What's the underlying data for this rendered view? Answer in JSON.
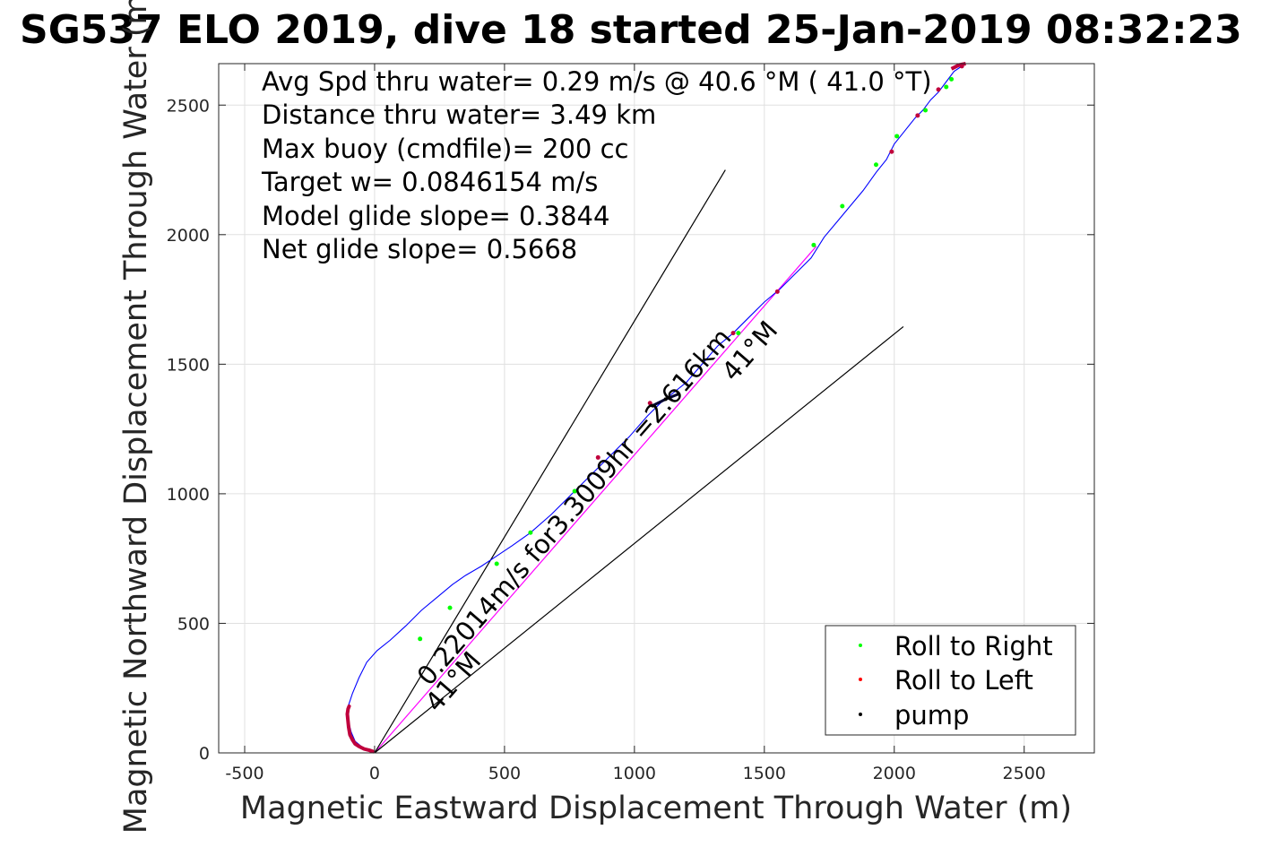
{
  "chart_data": {
    "type": "line",
    "title": "SG537 ELO 2019, dive 18 started 25-Jan-2019 08:32:23",
    "xlabel": "Magnetic Eastward Displacement Through Water (m)",
    "ylabel": "Magnetic Northward Displacement Through Water (m)",
    "xlim": [
      -600,
      2770
    ],
    "ylim": [
      0,
      2660
    ],
    "xticks": [
      -500,
      0,
      500,
      1000,
      1500,
      2000,
      2500
    ],
    "yticks": [
      0,
      500,
      1000,
      1500,
      2000,
      2500
    ],
    "xtick_labels": [
      "-500",
      "0",
      "500",
      "1000",
      "1500",
      "2000",
      "2500"
    ],
    "ytick_labels": [
      "0",
      "500",
      "1000",
      "1500",
      "2000",
      "2500"
    ],
    "grid": true,
    "legend_position": "bottom-right",
    "annotations": [
      "Avg Spd thru water=  0.29 m/s @  40.6 °M ( 41.0 °T)",
      "Distance thru water=  3.49 km",
      "Max buoy (cmdfile)= 200 cc",
      "Target w= 0.0846154 m/s",
      "Model glide slope= 0.3844",
      "Net glide slope= 0.5668"
    ],
    "line_labels": {
      "track_label": "0.22014m/s for3.3009hr =2.616km",
      "heading_upper": "41°M",
      "heading_lower": "41°M"
    },
    "legend": [
      {
        "name": "Roll to Right",
        "color": "#00ff00"
      },
      {
        "name": "Roll to Left",
        "color": "#ff0000"
      },
      {
        "name": "pump",
        "color": "#000000"
      }
    ],
    "colors": {
      "track": "#0000ff",
      "heading_line": "#ff00ff",
      "roll_right": "#00ff00",
      "roll_left": "#ff0000",
      "pump": "#000000",
      "dense_roll_left": "#c0003c"
    },
    "series": [
      {
        "name": "track",
        "x": [
          0,
          -45,
          -75,
          -90,
          -100,
          -105,
          -100,
          -85,
          -60,
          -30,
          10,
          60,
          120,
          180,
          240,
          300,
          350,
          410,
          470,
          530,
          600,
          680,
          760,
          850,
          920,
          980,
          1050,
          1100,
          1150,
          1200,
          1260,
          1320,
          1380,
          1440,
          1500,
          1560,
          1620,
          1680,
          1730,
          1780,
          1830,
          1880,
          1930,
          1970,
          2000,
          2040,
          2080,
          2110,
          2140,
          2170,
          2200,
          2230,
          2260
        ],
        "y": [
          0,
          20,
          45,
          80,
          120,
          165,
          185,
          230,
          290,
          350,
          395,
          435,
          490,
          550,
          600,
          650,
          685,
          720,
          760,
          800,
          850,
          920,
          1000,
          1090,
          1160,
          1220,
          1300,
          1350,
          1390,
          1430,
          1500,
          1570,
          1620,
          1680,
          1740,
          1790,
          1850,
          1910,
          1990,
          2050,
          2110,
          2170,
          2240,
          2290,
          2350,
          2400,
          2450,
          2480,
          2520,
          2550,
          2590,
          2630,
          2650
        ]
      },
      {
        "name": "Roll to Right",
        "x": [
          175,
          290,
          470,
          600,
          770,
          1400,
          1690,
          1800,
          1930,
          2010,
          2120,
          2200,
          2220
        ],
        "y": [
          440,
          560,
          730,
          850,
          1010,
          1620,
          1960,
          2110,
          2270,
          2380,
          2480,
          2570,
          2600
        ]
      },
      {
        "name": "Roll to Left",
        "x": [
          860,
          1060,
          1380,
          1550,
          1990,
          2090,
          2170,
          2260
        ],
        "y": [
          1140,
          1350,
          1620,
          1780,
          2320,
          2460,
          2560,
          2650
        ]
      },
      {
        "name": "pump",
        "x": [
          1070,
          1120,
          1170
        ],
        "y": [
          1340,
          1365,
          1385
        ]
      }
    ],
    "reference_lines": [
      {
        "name": "heading",
        "x": [
          0,
          1700
        ],
        "y": [
          0,
          1955
        ]
      },
      {
        "name": "upper-bound",
        "x": [
          0,
          1350
        ],
        "y": [
          0,
          2250
        ]
      },
      {
        "name": "lower-bound",
        "x": [
          0,
          2035
        ],
        "y": [
          0,
          1645
        ]
      }
    ],
    "dense_cluster": {
      "x": [
        -5,
        -20,
        -40,
        -60,
        -75,
        -85,
        -95,
        -100,
        -103,
        -105,
        -102,
        -98
      ],
      "y": [
        5,
        10,
        15,
        25,
        35,
        50,
        70,
        100,
        130,
        150,
        170,
        180
      ]
    }
  }
}
